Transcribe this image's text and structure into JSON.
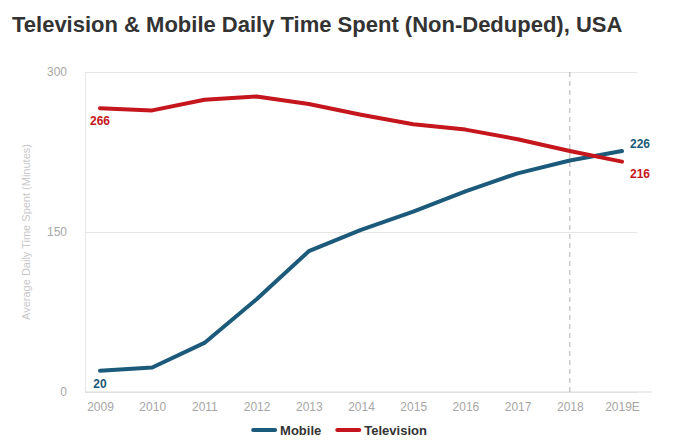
{
  "chart_data": {
    "type": "line",
    "title": "Television & Mobile Daily Time Spent (Non-Deduped), USA",
    "y_label": "Average Daily Time Spent (Minutes)",
    "categories": [
      "2009",
      "2010",
      "2011",
      "2012",
      "2013",
      "2014",
      "2015",
      "2016",
      "2017",
      "2018",
      "2019E"
    ],
    "series": [
      {
        "name": "Mobile",
        "color": "#1b5a7a",
        "values": [
          20,
          23,
          46,
          87,
          132,
          152,
          169,
          188,
          205,
          217,
          226
        ]
      },
      {
        "name": "Television",
        "color": "#c4161c",
        "values": [
          266,
          264,
          274,
          277,
          270,
          260,
          251,
          246,
          237,
          226,
          216
        ]
      }
    ],
    "ylim": [
      0,
      300
    ],
    "yticks": [
      0,
      150,
      300
    ],
    "grid": true,
    "legend": "bottom",
    "annotations": [
      {
        "series": "Television",
        "x": "2009",
        "y": 266,
        "text": "266"
      },
      {
        "series": "Mobile",
        "x": "2009",
        "y": 20,
        "text": "20"
      },
      {
        "series": "Mobile",
        "x": "2019E",
        "y": 226,
        "text": "226"
      },
      {
        "series": "Television",
        "x": "2019E",
        "y": 216,
        "text": "216"
      }
    ],
    "reference_lines": [
      {
        "x": "2018",
        "line_style": "dashed"
      }
    ]
  }
}
